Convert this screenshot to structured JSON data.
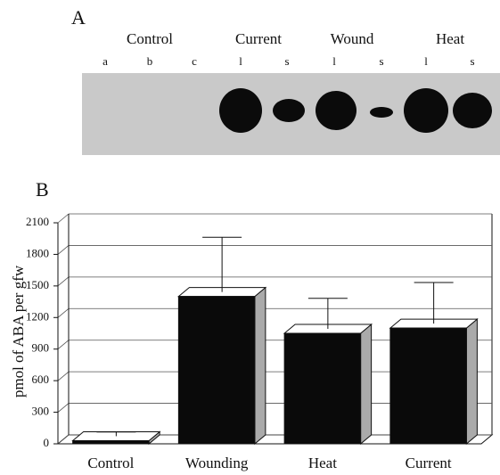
{
  "panel_a": {
    "label": "A",
    "groups": [
      "Control",
      "Current",
      "Wound",
      "Heat"
    ],
    "lanes": [
      "a",
      "b",
      "c",
      "l",
      "s",
      "l",
      "s",
      "l",
      "s"
    ]
  },
  "chart_data": {
    "type": "bar",
    "panel_label": "B",
    "y_label": "pmol of ABA per gfw",
    "categories": [
      "Control",
      "Wounding",
      "Heat",
      "Current"
    ],
    "values": [
      30,
      1400,
      1050,
      1100
    ],
    "errors": [
      40,
      520,
      290,
      390
    ],
    "color": "#0a0a0a",
    "ylim": [
      0,
      2100
    ],
    "yticks": [
      0,
      300,
      600,
      900,
      1200,
      1500,
      1800,
      2100
    ],
    "grid": true
  }
}
